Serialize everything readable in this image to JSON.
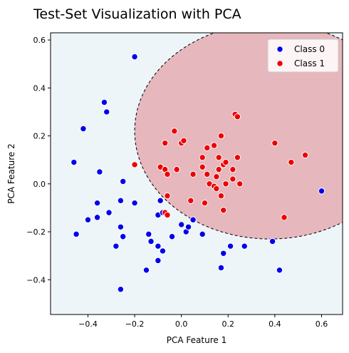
{
  "chart_data": {
    "type": "scatter",
    "title": "Test-Set Visualization with PCA",
    "xlabel": "PCA Feature 1",
    "ylabel": "PCA Feature 2",
    "xlim": [
      -0.56,
      0.69
    ],
    "ylim": [
      -0.545,
      0.63
    ],
    "xticks": [
      -0.4,
      -0.2,
      0.0,
      0.2,
      0.4,
      0.6
    ],
    "yticks": [
      -0.4,
      -0.2,
      0.0,
      0.2,
      0.4,
      0.6
    ],
    "xtick_labels": [
      "−0.4",
      "−0.2",
      "0.0",
      "0.2",
      "0.4",
      "0.6"
    ],
    "ytick_labels": [
      "−0.4",
      "−0.2",
      "0.0",
      "0.2",
      "0.4",
      "0.6"
    ],
    "grid": false,
    "legend_position": "top-right",
    "background_color": "#eef5f8",
    "decision_region": {
      "class": "Class 1",
      "shape": "ellipse",
      "center": [
        0.38,
        0.22
      ],
      "radius_x": 0.58,
      "radius_y": 0.45,
      "fill": "#e6b7bd",
      "border": "dashed black"
    },
    "series": [
      {
        "name": "Class 0",
        "color": "#0000ee",
        "points": [
          [
            -0.2,
            0.53
          ],
          [
            -0.33,
            0.34
          ],
          [
            -0.32,
            0.3
          ],
          [
            -0.42,
            0.23
          ],
          [
            -0.46,
            0.09
          ],
          [
            -0.35,
            0.05
          ],
          [
            -0.25,
            0.01
          ],
          [
            -0.2,
            -0.08
          ],
          [
            -0.36,
            -0.08
          ],
          [
            -0.26,
            -0.07
          ],
          [
            -0.31,
            -0.12
          ],
          [
            -0.36,
            -0.14
          ],
          [
            -0.4,
            -0.15
          ],
          [
            -0.45,
            -0.21
          ],
          [
            -0.26,
            -0.18
          ],
          [
            -0.25,
            -0.22
          ],
          [
            -0.28,
            -0.26
          ],
          [
            -0.26,
            -0.44
          ],
          [
            -0.09,
            -0.07
          ],
          [
            -0.1,
            -0.13
          ],
          [
            -0.08,
            -0.12
          ],
          [
            -0.14,
            -0.21
          ],
          [
            -0.13,
            -0.24
          ],
          [
            -0.1,
            -0.26
          ],
          [
            -0.08,
            -0.28
          ],
          [
            -0.1,
            -0.32
          ],
          [
            -0.15,
            -0.36
          ],
          [
            -0.04,
            -0.22
          ],
          [
            0.0,
            -0.17
          ],
          [
            0.02,
            -0.2
          ],
          [
            0.03,
            -0.18
          ],
          [
            0.05,
            -0.15
          ],
          [
            0.09,
            -0.21
          ],
          [
            0.17,
            -0.35
          ],
          [
            0.18,
            -0.29
          ],
          [
            0.21,
            -0.26
          ],
          [
            0.27,
            -0.26
          ],
          [
            0.39,
            -0.24
          ],
          [
            0.42,
            -0.36
          ],
          [
            0.6,
            -0.03
          ]
        ]
      },
      {
        "name": "Class 1",
        "color": "#ee0000",
        "points": [
          [
            -0.2,
            0.08
          ],
          [
            -0.09,
            0.07
          ],
          [
            -0.07,
            0.06
          ],
          [
            -0.06,
            0.04
          ],
          [
            -0.06,
            -0.05
          ],
          [
            -0.07,
            -0.12
          ],
          [
            -0.06,
            -0.13
          ],
          [
            -0.07,
            0.17
          ],
          [
            -0.03,
            0.22
          ],
          [
            -0.02,
            0.06
          ],
          [
            0.0,
            0.17
          ],
          [
            0.01,
            0.18
          ],
          [
            0.04,
            -0.07
          ],
          [
            0.05,
            0.04
          ],
          [
            0.09,
            0.07
          ],
          [
            0.09,
            0.11
          ],
          [
            0.1,
            -0.08
          ],
          [
            0.11,
            0.15
          ],
          [
            0.11,
            0.04
          ],
          [
            0.12,
            0.0
          ],
          [
            0.14,
            0.16
          ],
          [
            0.14,
            -0.01
          ],
          [
            0.15,
            -0.02
          ],
          [
            0.15,
            0.03
          ],
          [
            0.16,
            0.11
          ],
          [
            0.16,
            0.06
          ],
          [
            0.17,
            0.2
          ],
          [
            0.17,
            -0.05
          ],
          [
            0.18,
            -0.11
          ],
          [
            0.18,
            0.08
          ],
          [
            0.19,
            0.09
          ],
          [
            0.19,
            0.0
          ],
          [
            0.22,
            0.06
          ],
          [
            0.22,
            0.02
          ],
          [
            0.23,
            0.29
          ],
          [
            0.24,
            0.28
          ],
          [
            0.24,
            0.11
          ],
          [
            0.25,
            0.0
          ],
          [
            0.4,
            0.17
          ],
          [
            0.44,
            -0.14
          ],
          [
            0.47,
            0.09
          ],
          [
            0.53,
            0.12
          ]
        ]
      }
    ]
  }
}
